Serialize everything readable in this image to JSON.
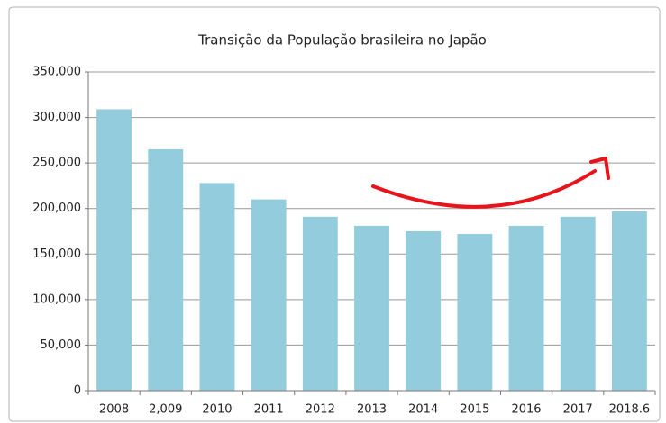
{
  "chart_data": {
    "type": "bar",
    "title": "Transição da População brasileira no Japão",
    "categories": [
      "2008",
      "2,009",
      "2010",
      "2011",
      "2012",
      "2013",
      "2014",
      "2015",
      "2016",
      "2017",
      "2018.6"
    ],
    "values": [
      309000,
      265000,
      228000,
      210000,
      191000,
      181000,
      175000,
      172000,
      181000,
      191000,
      197000
    ],
    "color": "#93cddd",
    "ylim": [
      0,
      350000
    ],
    "yticks": [
      0,
      {
        "value": 50000,
        "label": "50,000"
      },
      {
        "value": 100000,
        "label": "100,000"
      },
      {
        "value": 150000,
        "label": "150,000"
      },
      {
        "value": 200000,
        "label": "200,000"
      },
      {
        "value": 250000,
        "label": "250,000"
      },
      {
        "value": 300000,
        "label": "300,000"
      },
      {
        "value": 350000,
        "label": "350,000"
      }
    ],
    "grid": true
  }
}
